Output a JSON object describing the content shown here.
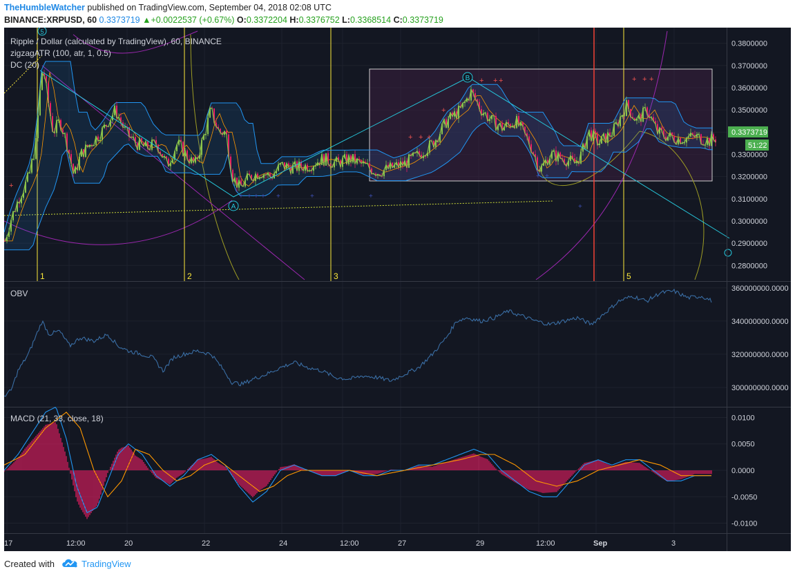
{
  "header": {
    "author": "TheHumbleWatcher",
    "published_text": "published on TradingView.com, September 04, 2018 02:08 UTC",
    "symbol_line": "BINANCE:XRPUSD, 60",
    "last": "0.3373719",
    "change": "+0.0022537 (+0.67%)",
    "o_label": "O:",
    "o": "0.3372204",
    "h_label": "H:",
    "h": "0.3376752",
    "l_label": "L:",
    "l": "0.3368514",
    "c_label": "C:",
    "c": "0.3373719"
  },
  "chart": {
    "title": "Ripple / Dollar (calculated by TradingView), 60, BINANCE",
    "indicators": [
      "zigzagATR (100, atr, 1, 0.5)",
      "DC (20)"
    ],
    "price_badge": "0.3373719",
    "countdown_badge": "51:22",
    "colors": {
      "background": "#131722",
      "up": "#8bc34a",
      "down": "#e91e63",
      "donchian": "#2196f3",
      "zigzag": "#26c6da",
      "gann": "#9c27b0",
      "vline": "#ffeb3b",
      "redline": "#f44336",
      "badge": "#4caf50"
    }
  },
  "chart_data": [
    {
      "type": "candlestick",
      "title": "Ripple / Dollar (calculated by TradingView), 60, BINANCE",
      "y_ticks": [
        "0.3800000",
        "0.3700000",
        "0.3600000",
        "0.3500000",
        "0.3400000",
        "0.3300000",
        "0.3200000",
        "0.3100000",
        "0.3000000",
        "0.2900000",
        "0.2800000"
      ],
      "ylim": [
        0.2745,
        0.3855
      ],
      "close_path": [
        [
          0,
          0.291
        ],
        [
          8,
          0.3
        ],
        [
          20,
          0.31
        ],
        [
          35,
          0.32
        ],
        [
          45,
          0.335
        ],
        [
          50,
          0.355
        ],
        [
          55,
          0.37
        ],
        [
          62,
          0.355
        ],
        [
          70,
          0.34
        ],
        [
          80,
          0.345
        ],
        [
          90,
          0.335
        ],
        [
          100,
          0.32
        ],
        [
          110,
          0.33
        ],
        [
          125,
          0.335
        ],
        [
          140,
          0.34
        ],
        [
          150,
          0.345
        ],
        [
          160,
          0.35
        ],
        [
          175,
          0.34
        ],
        [
          190,
          0.335
        ],
        [
          205,
          0.333
        ],
        [
          220,
          0.335
        ],
        [
          235,
          0.325
        ],
        [
          250,
          0.335
        ],
        [
          262,
          0.33
        ],
        [
          275,
          0.325
        ],
        [
          290,
          0.34
        ],
        [
          298,
          0.35
        ],
        [
          310,
          0.34
        ],
        [
          320,
          0.34
        ],
        [
          330,
          0.32
        ],
        [
          340,
          0.315
        ],
        [
          355,
          0.32
        ],
        [
          370,
          0.322
        ],
        [
          385,
          0.32
        ],
        [
          400,
          0.325
        ],
        [
          420,
          0.324
        ],
        [
          440,
          0.325
        ],
        [
          460,
          0.328
        ],
        [
          480,
          0.326
        ],
        [
          500,
          0.328
        ],
        [
          520,
          0.325
        ],
        [
          540,
          0.322
        ],
        [
          560,
          0.324
        ],
        [
          580,
          0.326
        ],
        [
          600,
          0.33
        ],
        [
          620,
          0.335
        ],
        [
          640,
          0.345
        ],
        [
          660,
          0.35
        ],
        [
          675,
          0.358
        ],
        [
          690,
          0.35
        ],
        [
          705,
          0.345
        ],
        [
          720,
          0.342
        ],
        [
          740,
          0.345
        ],
        [
          760,
          0.335
        ],
        [
          775,
          0.323
        ],
        [
          790,
          0.33
        ],
        [
          810,
          0.328
        ],
        [
          825,
          0.326
        ],
        [
          835,
          0.33
        ],
        [
          845,
          0.34
        ],
        [
          860,
          0.335
        ],
        [
          880,
          0.34
        ],
        [
          900,
          0.352
        ],
        [
          915,
          0.345
        ],
        [
          930,
          0.35
        ],
        [
          945,
          0.34
        ],
        [
          960,
          0.338
        ],
        [
          980,
          0.337
        ],
        [
          1000,
          0.338
        ],
        [
          1020,
          0.336
        ],
        [
          1030,
          0.3374
        ]
      ]
    },
    {
      "type": "line",
      "title": "OBV",
      "y_ticks": [
        "360000000.0000",
        "340000000.0000",
        "320000000.0000",
        "300000000.0000"
      ],
      "ylim": [
        290000000,
        362000000
      ],
      "series": [
        {
          "values": [
            [
              0,
              295
            ],
            [
              10,
              298
            ],
            [
              20,
              310
            ],
            [
              35,
              320
            ],
            [
              45,
              330
            ],
            [
              55,
              340
            ],
            [
              65,
              332
            ],
            [
              80,
              334
            ],
            [
              95,
              325
            ],
            [
              110,
              330
            ],
            [
              130,
              328
            ],
            [
              150,
              332
            ],
            [
              165,
              325
            ],
            [
              180,
              322
            ],
            [
              200,
              320
            ],
            [
              215,
              318
            ],
            [
              230,
              310
            ],
            [
              245,
              318
            ],
            [
              260,
              320
            ],
            [
              280,
              322
            ],
            [
              300,
              320
            ],
            [
              315,
              312
            ],
            [
              330,
              303
            ],
            [
              345,
              302
            ],
            [
              360,
              305
            ],
            [
              380,
              308
            ],
            [
              400,
              312
            ],
            [
              420,
              315
            ],
            [
              440,
              312
            ],
            [
              460,
              310
            ],
            [
              480,
              306
            ],
            [
              500,
              305
            ],
            [
              520,
              307
            ],
            [
              540,
              306
            ],
            [
              560,
              304
            ],
            [
              580,
              308
            ],
            [
              600,
              312
            ],
            [
              620,
              320
            ],
            [
              640,
              330
            ],
            [
              655,
              340
            ],
            [
              670,
              342
            ],
            [
              690,
              340
            ],
            [
              710,
              342
            ],
            [
              730,
              346
            ],
            [
              750,
              343
            ],
            [
              770,
              340
            ],
            [
              790,
              338
            ],
            [
              810,
              340
            ],
            [
              830,
              342
            ],
            [
              850,
              338
            ],
            [
              870,
              345
            ],
            [
              890,
              352
            ],
            [
              910,
              355
            ],
            [
              930,
              352
            ],
            [
              950,
              357
            ],
            [
              970,
              358
            ],
            [
              990,
              354
            ],
            [
              1010,
              355
            ],
            [
              1025,
              352
            ]
          ]
        }
      ]
    },
    {
      "type": "line",
      "title": "MACD (21, 33, close, 18)",
      "y_ticks": [
        "0.0100",
        "0.0050",
        "0.0000",
        "-0.0050",
        "-0.0100"
      ],
      "ylim": [
        -0.0115,
        0.0115
      ],
      "series": [
        {
          "values": [
            [
              0,
              0.0
            ],
            [
              20,
              0.003
            ],
            [
              40,
              0.007
            ],
            [
              60,
              0.011
            ],
            [
              75,
              0.012
            ],
            [
              90,
              0.006
            ],
            [
              105,
              -0.003
            ],
            [
              120,
              -0.008
            ],
            [
              135,
              -0.007
            ],
            [
              150,
              -0.002
            ],
            [
              165,
              0.003
            ],
            [
              180,
              0.005
            ],
            [
              200,
              0.003
            ],
            [
              220,
              -0.001
            ],
            [
              240,
              -0.003
            ],
            [
              260,
              -0.001
            ],
            [
              280,
              0.002
            ],
            [
              300,
              0.003
            ],
            [
              320,
              0.001
            ],
            [
              340,
              -0.003
            ],
            [
              360,
              -0.006
            ],
            [
              380,
              -0.004
            ],
            [
              400,
              0.0
            ],
            [
              420,
              0.001
            ],
            [
              440,
              0.0
            ],
            [
              460,
              -0.001
            ],
            [
              480,
              -0.001
            ],
            [
              500,
              0.0
            ],
            [
              520,
              -0.001
            ],
            [
              540,
              -0.001
            ],
            [
              560,
              0.0
            ],
            [
              580,
              0.0
            ],
            [
              600,
              0.001
            ],
            [
              620,
              0.001
            ],
            [
              640,
              0.002
            ],
            [
              660,
              0.003
            ],
            [
              680,
              0.004
            ],
            [
              700,
              0.003
            ],
            [
              720,
              0.0
            ],
            [
              740,
              -0.002
            ],
            [
              760,
              -0.004
            ],
            [
              780,
              -0.005
            ],
            [
              800,
              -0.005
            ],
            [
              820,
              -0.002
            ],
            [
              840,
              0.001
            ],
            [
              860,
              0.002
            ],
            [
              880,
              0.001
            ],
            [
              900,
              0.002
            ],
            [
              920,
              0.002
            ],
            [
              940,
              0.0
            ],
            [
              960,
              -0.002
            ],
            [
              980,
              -0.002
            ],
            [
              1000,
              -0.001
            ],
            [
              1025,
              -0.001
            ]
          ]
        },
        {
          "values": [
            [
              0,
              0.001
            ],
            [
              30,
              0.003
            ],
            [
              60,
              0.008
            ],
            [
              90,
              0.011
            ],
            [
              110,
              0.008
            ],
            [
              130,
              0.0
            ],
            [
              150,
              -0.005
            ],
            [
              170,
              -0.002
            ],
            [
              190,
              0.004
            ],
            [
              210,
              0.003
            ],
            [
              230,
              0.0
            ],
            [
              250,
              -0.002
            ],
            [
              270,
              -0.001
            ],
            [
              290,
              0.001
            ],
            [
              310,
              0.002
            ],
            [
              330,
              0.0
            ],
            [
              350,
              -0.002
            ],
            [
              370,
              -0.004
            ],
            [
              390,
              -0.003
            ],
            [
              410,
              -0.001
            ],
            [
              430,
              0.0
            ],
            [
              460,
              0.0
            ],
            [
              500,
              0.0
            ],
            [
              540,
              -0.001
            ],
            [
              580,
              0.0
            ],
            [
              620,
              0.001
            ],
            [
              660,
              0.002
            ],
            [
              690,
              0.003
            ],
            [
              710,
              0.003
            ],
            [
              740,
              0.001
            ],
            [
              770,
              -0.002
            ],
            [
              800,
              -0.003
            ],
            [
              830,
              -0.002
            ],
            [
              860,
              0.0
            ],
            [
              890,
              0.001
            ],
            [
              920,
              0.002
            ],
            [
              950,
              0.001
            ],
            [
              980,
              -0.001
            ],
            [
              1010,
              -0.001
            ],
            [
              1025,
              -0.001
            ]
          ]
        }
      ]
    }
  ],
  "x_axis": {
    "labels": [
      "17",
      "12:00",
      "20",
      "22",
      "24",
      "12:00",
      "27",
      "29",
      "12:00",
      "Sep",
      "3"
    ]
  },
  "markers": {
    "vlines": [
      "1",
      "2",
      "3",
      "5"
    ],
    "top_badge": "5",
    "point_a": "A",
    "point_b": "B"
  },
  "panes": {
    "obv_label": "OBV",
    "macd_label": "MACD (21, 33, close, 18)"
  },
  "footer": {
    "created": "Created with",
    "brand": "TradingView",
    "logo": "tradingview-cloud-icon"
  }
}
